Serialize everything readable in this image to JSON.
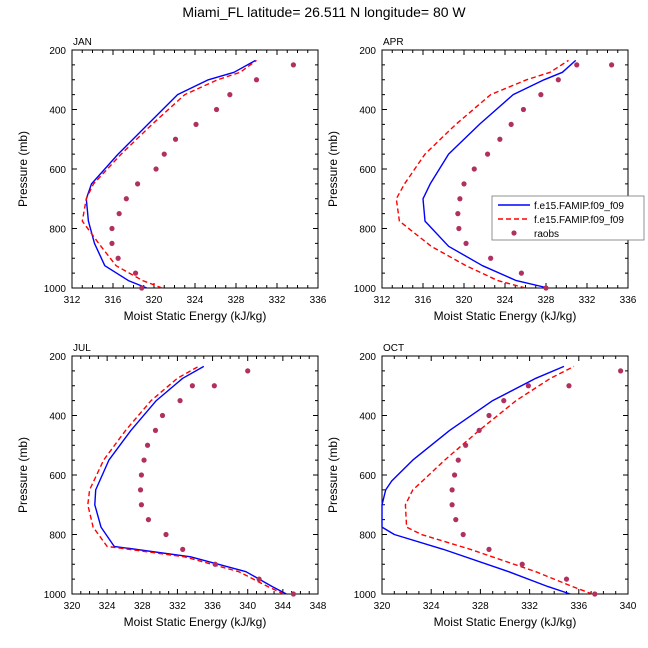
{
  "figure": {
    "title": "Miami_FL  latitude= 26.511 N longitude= 80 W"
  },
  "chart_data": [
    {
      "type": "line",
      "panel_label": "JAN",
      "xlabel": "Moist Static Energy (kJ/kg)",
      "ylabel": "Pressure (mb)",
      "xlim": [
        312,
        336
      ],
      "xticks": [
        312,
        316,
        320,
        324,
        328,
        332,
        336
      ],
      "ylim": [
        1000,
        200
      ],
      "yticks": [
        200,
        400,
        600,
        800,
        1000
      ],
      "y_inverted": true,
      "legend": null,
      "series": [
        {
          "name": "f.e15.FAMIP.f09_f09",
          "color": "#0000ff",
          "style": "solid",
          "x": [
            319.3,
            317.5,
            315.2,
            314.2,
            313.6,
            313.4,
            313.9,
            316.5,
            319.4,
            322.3,
            325.3,
            327.8,
            329.9
          ],
          "y": [
            1000,
            975,
            925,
            850,
            775,
            700,
            650,
            550,
            450,
            350,
            300,
            275,
            235
          ]
        },
        {
          "name": "f.e15.FAMIP.f09_f09",
          "color": "#ff0000",
          "style": "dash",
          "x": [
            320.8,
            318.9,
            316.3,
            314.6,
            313.0,
            313.4,
            314.1,
            316.8,
            319.8,
            323.0,
            326.2,
            328.4,
            330.0
          ],
          "y": [
            1000,
            975,
            925,
            850,
            775,
            700,
            650,
            550,
            450,
            350,
            300,
            275,
            235
          ]
        },
        {
          "name": "raobs",
          "color": "#b03060",
          "style": "marker",
          "x": [
            318.8,
            318.2,
            316.5,
            315.9,
            315.9,
            316.6,
            317.3,
            318.4,
            320.2,
            321.0,
            322.1,
            324.1,
            326.1,
            327.4,
            330.0,
            333.6
          ],
          "y": [
            1000,
            950,
            900,
            850,
            800,
            750,
            700,
            650,
            600,
            550,
            500,
            450,
            400,
            350,
            300,
            250
          ]
        }
      ]
    },
    {
      "type": "line",
      "panel_label": "APR",
      "xlabel": "Moist Static Energy (kJ/kg)",
      "ylabel": "Pressure (mb)",
      "xlim": [
        312,
        336
      ],
      "xticks": [
        312,
        316,
        320,
        324,
        328,
        332,
        336
      ],
      "ylim": [
        1000,
        200
      ],
      "yticks": [
        200,
        400,
        600,
        800,
        1000
      ],
      "y_inverted": true,
      "legend": "right",
      "series": [
        {
          "name": "f.e15.FAMIP.f09_f09",
          "color": "#0000ff",
          "style": "solid",
          "x": [
            328.2,
            325.1,
            321.8,
            318.5,
            316.2,
            316.0,
            316.7,
            318.5,
            321.5,
            324.8,
            327.8,
            329.6,
            330.9
          ],
          "y": [
            1000,
            975,
            925,
            860,
            775,
            700,
            650,
            550,
            450,
            350,
            300,
            275,
            235
          ]
        },
        {
          "name": "f.e15.FAMIP.f09_f09",
          "color": "#ff0000",
          "style": "dash",
          "x": [
            326.0,
            323.3,
            320.2,
            316.8,
            313.7,
            313.4,
            314.2,
            316.2,
            319.2,
            322.6,
            326.1,
            328.4,
            330.2
          ],
          "y": [
            1000,
            975,
            925,
            860,
            775,
            700,
            650,
            550,
            450,
            350,
            300,
            275,
            235
          ]
        },
        {
          "name": "raobs",
          "color": "#b03060",
          "style": "marker",
          "x": [
            328.0,
            325.6,
            322.6,
            320.2,
            319.5,
            319.4,
            319.6,
            320.0,
            321.0,
            322.3,
            323.5,
            324.6,
            325.8,
            327.5,
            329.2,
            331.0,
            334.4
          ],
          "y": [
            1000,
            950,
            900,
            850,
            800,
            750,
            700,
            650,
            600,
            550,
            500,
            450,
            400,
            350,
            300,
            250,
            250
          ]
        }
      ]
    },
    {
      "type": "line",
      "panel_label": "JUL",
      "xlabel": "Moist Static Energy (kJ/kg)",
      "ylabel": "Pressure (mb)",
      "xlim": [
        320,
        348
      ],
      "xticks": [
        320,
        324,
        328,
        332,
        336,
        340,
        344,
        348
      ],
      "ylim": [
        1000,
        200
      ],
      "yticks": [
        200,
        400,
        600,
        800,
        1000
      ],
      "y_inverted": true,
      "legend": null,
      "series": [
        {
          "name": "f.e15.FAMIP.f09_f09",
          "color": "#0000ff",
          "style": "solid",
          "x": [
            344.4,
            342.8,
            339.8,
            333.5,
            324.8,
            323.3,
            322.6,
            322.7,
            324.2,
            326.7,
            329.6,
            332.6,
            335.0
          ],
          "y": [
            1000,
            975,
            925,
            875,
            840,
            775,
            700,
            650,
            550,
            450,
            350,
            275,
            235
          ]
        },
        {
          "name": "f.e15.FAMIP.f09_f09",
          "color": "#ff0000",
          "style": "dash",
          "x": [
            344.1,
            342.3,
            339.0,
            332.8,
            324.0,
            322.4,
            321.8,
            322.0,
            323.6,
            326.1,
            329.0,
            332.0,
            334.4
          ],
          "y": [
            1000,
            975,
            925,
            875,
            840,
            775,
            700,
            650,
            550,
            450,
            350,
            275,
            235
          ]
        },
        {
          "name": "raobs",
          "color": "#b03060",
          "style": "marker",
          "x": [
            345.2,
            341.3,
            336.3,
            332.6,
            330.7,
            328.7,
            327.9,
            327.8,
            327.9,
            328.2,
            328.6,
            329.5,
            330.3,
            332.3,
            333.7,
            336.2,
            340.0
          ],
          "y": [
            1000,
            950,
            900,
            850,
            800,
            750,
            700,
            650,
            600,
            550,
            500,
            450,
            400,
            350,
            300,
            300,
            250
          ]
        }
      ]
    },
    {
      "type": "line",
      "panel_label": "OCT",
      "xlabel": "Moist Static Energy (kJ/kg)",
      "ylabel": "Pressure (mb)",
      "xlim": [
        320,
        340
      ],
      "xticks": [
        320,
        324,
        328,
        332,
        336,
        340
      ],
      "ylim": [
        1000,
        200
      ],
      "yticks": [
        200,
        400,
        600,
        800,
        1000
      ],
      "y_inverted": true,
      "legend": null,
      "series": [
        {
          "name": "f.e15.FAMIP.f09_f09",
          "color": "#0000ff",
          "style": "solid",
          "x": [
            335.3,
            333.5,
            330.3,
            325.0,
            321.0,
            320.0,
            320.0,
            320.3,
            320.8,
            322.5,
            325.5,
            329.0,
            332.5,
            334.8
          ],
          "y": [
            1000,
            975,
            925,
            850,
            800,
            775,
            700,
            650,
            620,
            550,
            450,
            350,
            275,
            235
          ]
        },
        {
          "name": "f.e15.FAMIP.f09_f09",
          "color": "#ff0000",
          "style": "dash",
          "x": [
            337.1,
            335.5,
            332.5,
            327.2,
            323.2,
            322.0,
            321.9,
            322.5,
            323.3,
            325.1,
            327.9,
            330.9,
            333.7,
            335.6
          ],
          "y": [
            1000,
            975,
            925,
            850,
            800,
            775,
            700,
            650,
            620,
            550,
            450,
            350,
            275,
            235
          ]
        },
        {
          "name": "raobs",
          "color": "#b03060",
          "style": "marker",
          "x": [
            337.3,
            335.0,
            331.4,
            328.7,
            326.6,
            326.0,
            325.7,
            325.7,
            325.9,
            326.2,
            326.8,
            327.9,
            328.7,
            329.9,
            331.9,
            335.2,
            339.4
          ],
          "y": [
            1000,
            950,
            900,
            850,
            800,
            750,
            700,
            650,
            600,
            550,
            500,
            450,
            400,
            350,
            300,
            300,
            250
          ]
        }
      ]
    }
  ]
}
